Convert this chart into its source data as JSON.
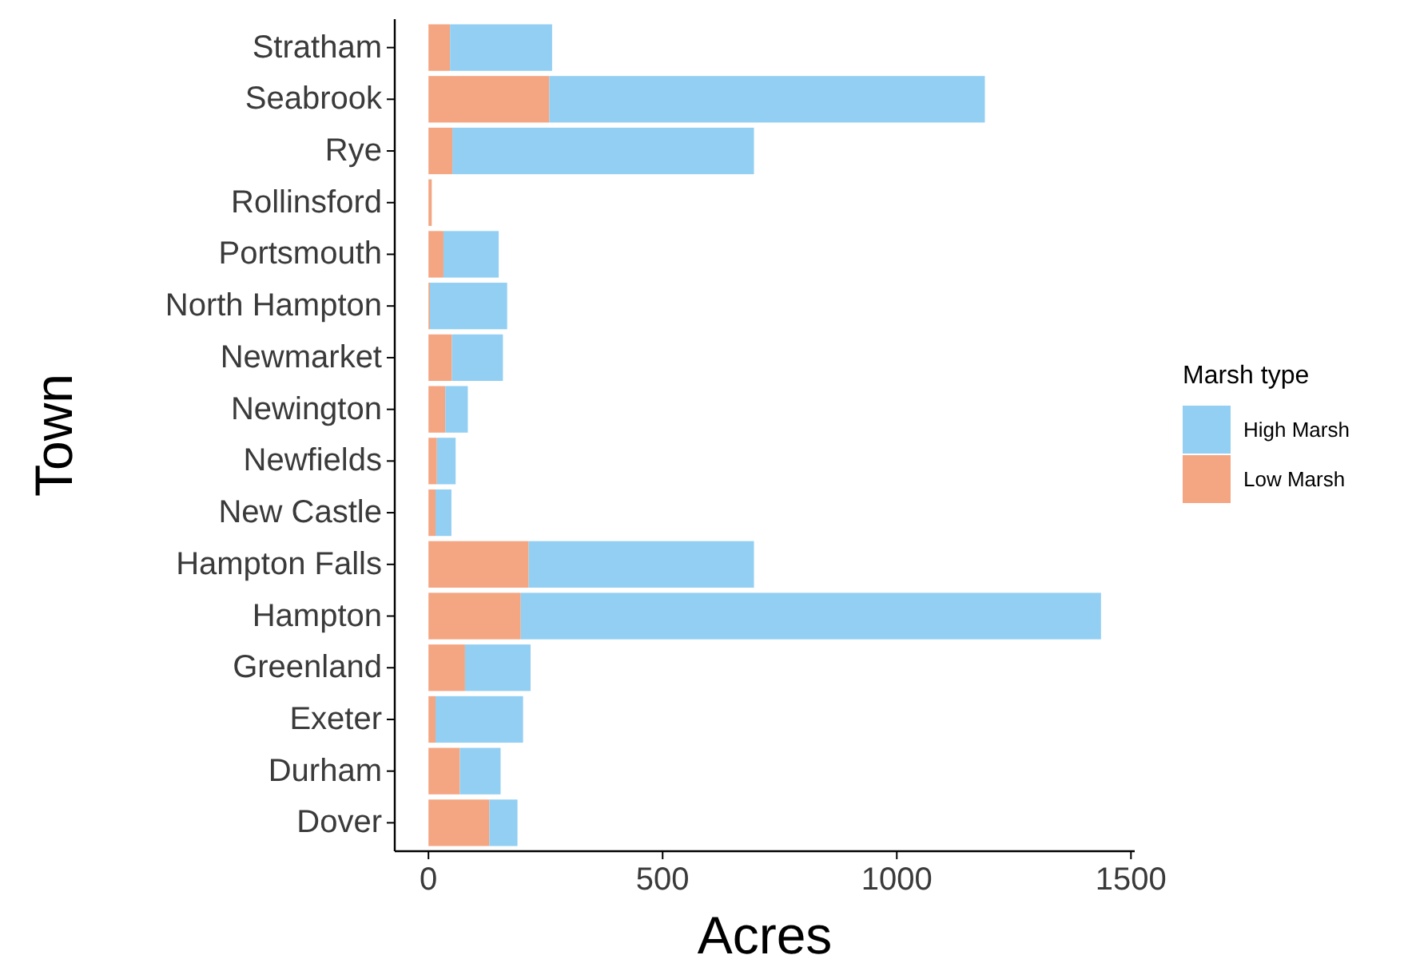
{
  "chart_data": {
    "type": "bar",
    "orientation": "horizontal",
    "stacked": true,
    "xlabel": "Acres",
    "ylabel": "Town",
    "legend_title": "Marsh type",
    "legend": "right",
    "categories": [
      "Stratham",
      "Seabrook",
      "Rye",
      "Rollinsford",
      "Portsmouth",
      "North Hampton",
      "Newmarket",
      "Newington",
      "Newfields",
      "New Castle",
      "Hampton Falls",
      "Hampton",
      "Greenland",
      "Exeter",
      "Durham",
      "Dover"
    ],
    "series": [
      {
        "name": "Low Marsh",
        "color": "#f4a582",
        "values": [
          46,
          258,
          51,
          7,
          32,
          3,
          50,
          36,
          18,
          15,
          214,
          197,
          78,
          15,
          67,
          130
        ]
      },
      {
        "name": "High Marsh",
        "color": "#92cff2",
        "values": [
          218,
          930,
          644,
          0,
          118,
          165,
          109,
          48,
          40,
          34,
          481,
          1239,
          140,
          187,
          87,
          60
        ]
      }
    ],
    "xlim": [
      -72,
      1508
    ],
    "xticks": [
      0,
      500,
      1000,
      1500
    ],
    "grid": false
  }
}
